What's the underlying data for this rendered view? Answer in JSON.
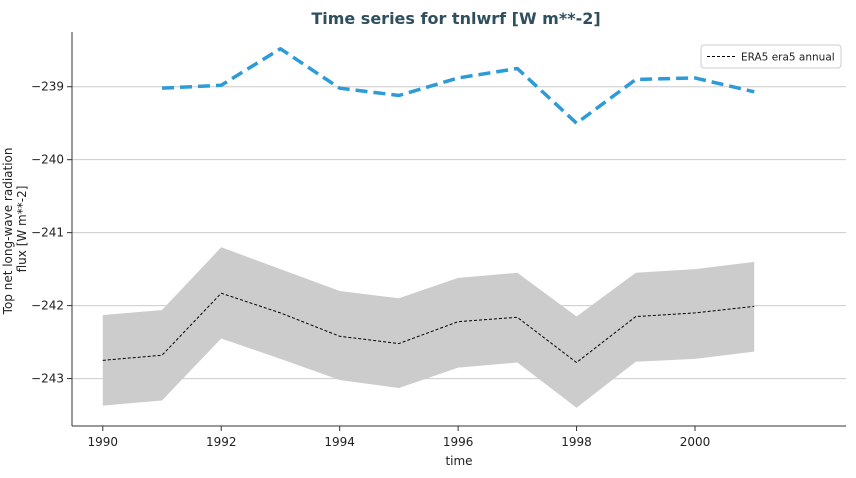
{
  "chart_data": {
    "type": "line",
    "title": "Time series for tnlwrf [W m**-2]",
    "xlabel": "time",
    "ylabel": [
      "Top net long-wave radiation",
      "flux [W m**-2]"
    ],
    "xlim": [
      1989.48,
      2002.55
    ],
    "ylim": [
      -243.65,
      -238.25
    ],
    "xticks": [
      1990,
      1992,
      1994,
      1996,
      1998,
      2000
    ],
    "yticks": [
      -239,
      -240,
      -241,
      -242,
      -243
    ],
    "grid": "horizontal",
    "legend_position": "top-right",
    "series": [
      {
        "name": "ERA5 era5 annual",
        "style": "dashed-thin",
        "color": "#000000",
        "x": [
          1990,
          1991,
          1992,
          1993,
          1994,
          1995,
          1996,
          1997,
          1998,
          1999,
          2000,
          2001
        ],
        "values": [
          -242.75,
          -242.68,
          -241.83,
          -242.1,
          -242.42,
          -242.52,
          -242.22,
          -242.16,
          -242.78,
          -242.15,
          -242.1,
          -242.01
        ]
      },
      {
        "style": "dashed-thick",
        "color": "#2d9bd8",
        "x": [
          1991,
          1992,
          1993,
          1994,
          1995,
          1996,
          1997,
          1998,
          1999,
          2000,
          2001
        ],
        "values": [
          -239.02,
          -238.98,
          -238.48,
          -239.02,
          -239.12,
          -238.88,
          -238.75,
          -239.5,
          -238.9,
          -238.88,
          -239.07
        ]
      }
    ],
    "band": {
      "color": "#cccccc",
      "x": [
        1990,
        1991,
        1992,
        1993,
        1994,
        1995,
        1996,
        1997,
        1998,
        1999,
        2000,
        2001
      ],
      "upper": [
        -242.13,
        -242.06,
        -241.2,
        -241.5,
        -241.8,
        -241.9,
        -241.62,
        -241.55,
        -242.15,
        -241.55,
        -241.5,
        -241.4
      ],
      "lower": [
        -243.37,
        -243.3,
        -242.45,
        -242.73,
        -243.02,
        -243.13,
        -242.85,
        -242.78,
        -243.4,
        -242.77,
        -242.73,
        -242.63
      ]
    }
  }
}
